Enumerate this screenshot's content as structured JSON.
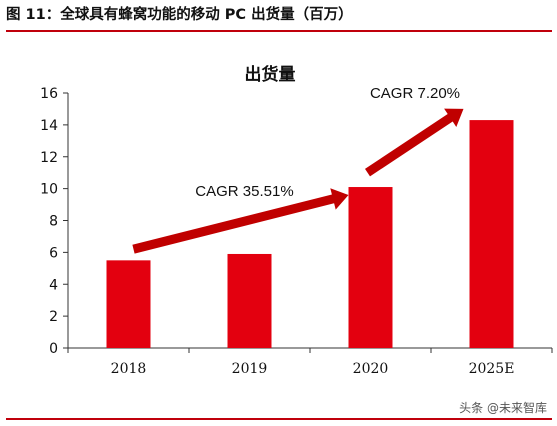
{
  "figure": {
    "title": "图 11：全球具有蜂窝功能的移动 PC 出货量（百万）",
    "watermark": "头条 @未来智库"
  },
  "colors": {
    "bar": "#e3000f",
    "arrow": "#c00000",
    "rule": "#c0000c"
  },
  "chart_data": {
    "type": "bar",
    "title": "出货量",
    "categories": [
      "2018",
      "2019",
      "2020",
      "2025E"
    ],
    "values": [
      5.5,
      5.9,
      10.1,
      14.3
    ],
    "ylim": [
      0,
      16
    ],
    "yticks": [
      0,
      2,
      4,
      6,
      8,
      10,
      12,
      14,
      16
    ],
    "xlabel": "",
    "ylabel": "",
    "grid": false,
    "annotations": [
      {
        "text": "CAGR 35.51%",
        "from": "2018",
        "to": "2020"
      },
      {
        "text": "CAGR 7.20%",
        "from": "2020",
        "to": "2025E"
      }
    ]
  }
}
